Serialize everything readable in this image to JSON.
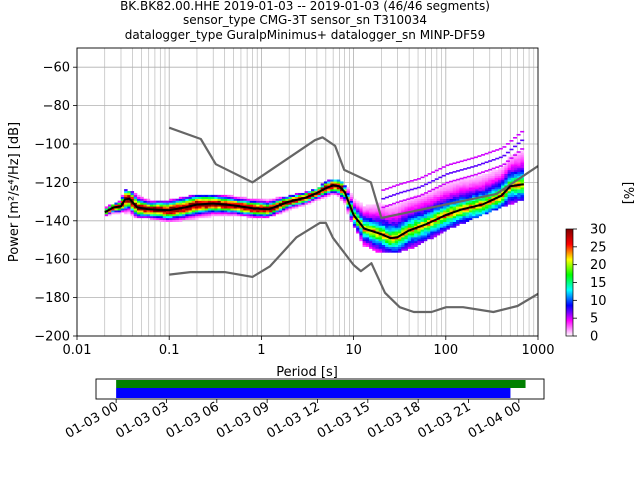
{
  "title_lines": [
    "BK.BK82.00.HHE   2019-01-03 -- 2019-01-03  (46/46 segments)",
    "sensor_type CMG-3T sensor_sn T310034",
    "datalogger_type GuralpMinimus+ datalogger_sn MINP-DF59"
  ],
  "chart_data": [
    {
      "type": "heatmap",
      "subtype": "probabilistic-power-spectral-density",
      "xlabel": "Period [s]",
      "ylabel": "Power [m²/s⁴/Hz] [dB]",
      "xscale": "log",
      "xlim": [
        0.01,
        1000
      ],
      "ylim": [
        -200,
        -50
      ],
      "x_ticks": [
        0.01,
        0.1,
        1,
        10,
        100,
        1000
      ],
      "x_tick_labels": [
        "0.01",
        "0.1",
        "1",
        "10",
        "100",
        "1000"
      ],
      "y_ticks": [
        -200,
        -180,
        -160,
        -140,
        -120,
        -100,
        -80,
        -60
      ],
      "y_tick_labels": [
        "−200",
        "−180",
        "−160",
        "−140",
        "−120",
        "−100",
        "−80",
        "−60"
      ],
      "grid": true,
      "colorbar": {
        "label": "[%]",
        "range": [
          0,
          30
        ],
        "ticks": [
          0,
          5,
          10,
          15,
          20,
          25,
          30
        ],
        "tick_labels": [
          "0",
          "5",
          "10",
          "15",
          "20",
          "25",
          "30"
        ],
        "colormap_stops": [
          "#ffffff",
          "#ff00ff",
          "#0000ff",
          "#00ffff",
          "#00ff00",
          "#ffff00",
          "#ff0000",
          "#800000"
        ]
      },
      "noise_models": [
        {
          "name": "NHNM",
          "color": "#666666",
          "points": [
            [
              0.1,
              -91.5
            ],
            [
              0.22,
              -97.4
            ],
            [
              0.32,
              -110.5
            ],
            [
              0.8,
              -120
            ],
            [
              3.8,
              -98
            ],
            [
              4.6,
              -96.5
            ],
            [
              6.3,
              -101
            ],
            [
              7.9,
              -113.5
            ],
            [
              15.4,
              -120
            ],
            [
              20,
              -138.5
            ],
            [
              354.8,
              -126
            ],
            [
              1000,
              -111.5
            ]
          ]
        },
        {
          "name": "NLNM",
          "color": "#666666",
          "points": [
            [
              0.1,
              -168
            ],
            [
              0.17,
              -166.7
            ],
            [
              0.4,
              -166.7
            ],
            [
              0.8,
              -169.2
            ],
            [
              1.24,
              -163.7
            ],
            [
              2.4,
              -148.6
            ],
            [
              4.3,
              -141.1
            ],
            [
              5,
              -141.1
            ],
            [
              6,
              -149
            ],
            [
              10,
              -163
            ],
            [
              12,
              -166.2
            ],
            [
              15.6,
              -162.1
            ],
            [
              21.9,
              -177.5
            ],
            [
              31.6,
              -185
            ],
            [
              45,
              -187.5
            ],
            [
              70,
              -187.5
            ],
            [
              101,
              -185
            ],
            [
              154,
              -185
            ],
            [
              328,
              -187.5
            ],
            [
              600,
              -184.4
            ],
            [
              1000,
              -178
            ]
          ]
        },
        {
          "name": "mean",
          "color": "#000000",
          "points": [
            [
              0.02,
              -135.5
            ],
            [
              0.025,
              -133
            ],
            [
              0.03,
              -132.5
            ],
            [
              0.033,
              -129
            ],
            [
              0.037,
              -128.5
            ],
            [
              0.045,
              -133
            ],
            [
              0.06,
              -134
            ],
            [
              0.1,
              -134.5
            ],
            [
              0.15,
              -133
            ],
            [
              0.2,
              -131.5
            ],
            [
              0.3,
              -131
            ],
            [
              0.5,
              -132
            ],
            [
              0.8,
              -133.5
            ],
            [
              1.2,
              -134
            ],
            [
              2,
              -130
            ],
            [
              3,
              -128
            ],
            [
              4,
              -125.5
            ],
            [
              5,
              -123
            ],
            [
              6,
              -121.5
            ],
            [
              7,
              -122
            ],
            [
              8,
              -125
            ],
            [
              10,
              -137
            ],
            [
              13,
              -144
            ],
            [
              20,
              -147
            ],
            [
              25,
              -149
            ],
            [
              30,
              -148.5
            ],
            [
              40,
              -145
            ],
            [
              60,
              -142
            ],
            [
              100,
              -137
            ],
            [
              150,
              -134
            ],
            [
              250,
              -131.5
            ],
            [
              400,
              -127
            ],
            [
              500,
              -122
            ],
            [
              700,
              -121
            ]
          ]
        }
      ],
      "histogram_envelope": {
        "period": [
          0.02,
          0.03,
          0.033,
          0.04,
          0.06,
          0.1,
          0.2,
          0.5,
          1,
          2,
          4,
          5,
          6,
          7,
          8,
          10,
          13,
          20,
          30,
          50,
          100,
          200,
          400,
          700
        ],
        "upper": [
          -134,
          -130,
          -124,
          -126,
          -130,
          -130,
          -127,
          -128,
          -130,
          -128,
          -124,
          -120,
          -119,
          -120,
          -122,
          -127,
          -130,
          -127,
          -124,
          -121,
          -114,
          -110,
          -105,
          -95
        ],
        "lower": [
          -137,
          -135,
          -135,
          -137,
          -138,
          -140,
          -138,
          -136,
          -138,
          -134,
          -129,
          -127,
          -126,
          -128,
          -132,
          -142,
          -152,
          -156,
          -156,
          -152,
          -144,
          -138,
          -132,
          -128
        ]
      }
    },
    {
      "type": "timeline",
      "x_tick_labels": [
        "01-03 00",
        "01-03 03",
        "01-03 06",
        "01-03 09",
        "01-03 12",
        "01-03 15",
        "01-03 18",
        "01-03 21",
        "01-04 00"
      ],
      "x_range_hours": [
        -1.2,
        25.5
      ],
      "bars": [
        {
          "name": "data_available",
          "color": "#008000",
          "start_hour": 0,
          "end_hour": 24.4
        },
        {
          "name": "psd_used",
          "color": "#0000ff",
          "start_hour": 0,
          "end_hour": 23.5
        }
      ]
    }
  ]
}
